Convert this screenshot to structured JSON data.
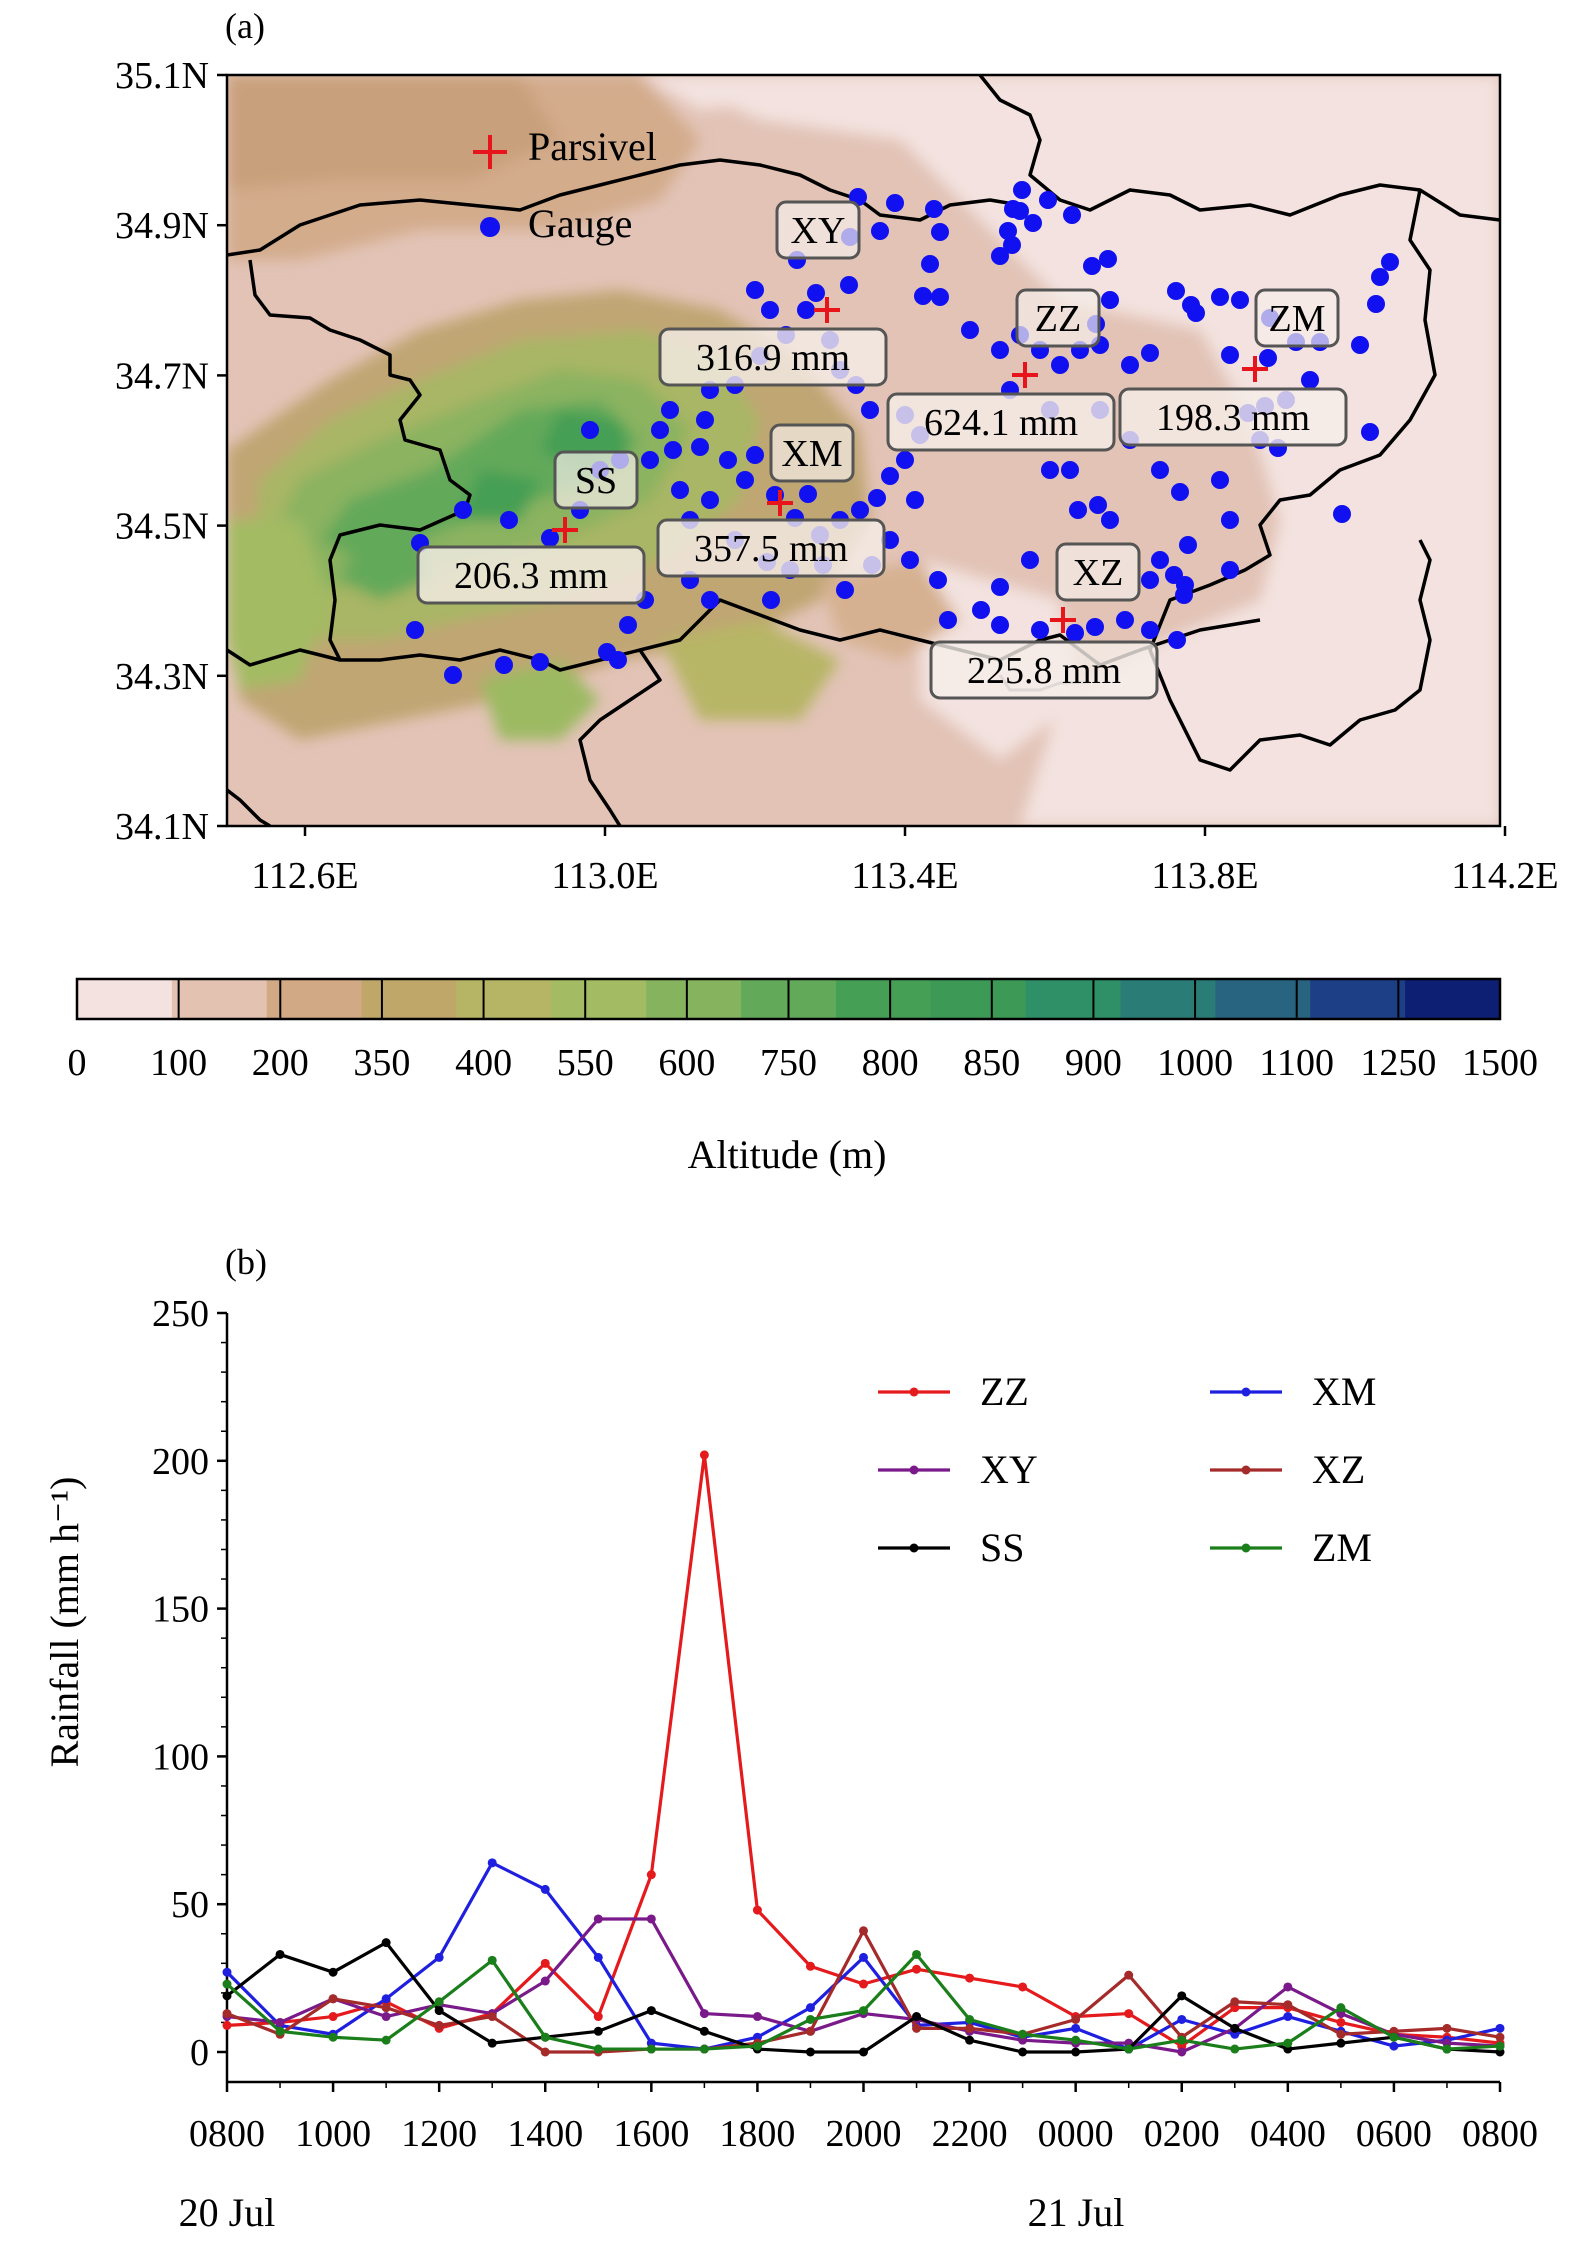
{
  "panel_a": {
    "label": "(a)",
    "lon_ticks": [
      "112.6E",
      "113.0E",
      "113.4E",
      "113.8E",
      "114.2E"
    ],
    "lat_ticks": [
      "35.1N",
      "34.9N",
      "34.7N",
      "34.5N",
      "34.3N",
      "34.1N"
    ],
    "legend": {
      "parsivel": "Parsivel",
      "gauge": "Gauge"
    },
    "colorbar": {
      "label": "Altitude (m)",
      "levels": [
        "0",
        "100",
        "200",
        "350",
        "400",
        "550",
        "600",
        "750",
        "800",
        "850",
        "900",
        "1000",
        "1100",
        "1250",
        "1500"
      ],
      "colors": [
        "#f3e2df",
        "#e4c2b1",
        "#d2a985",
        "#bfa76a",
        "#b6b566",
        "#a3bb63",
        "#86b35e",
        "#63a95a",
        "#459f55",
        "#3c9a56",
        "#2f8f66",
        "#2a7c76",
        "#28637f",
        "#1c3f85",
        "#0c1f73"
      ]
    },
    "stations": [
      {
        "name": "XY",
        "rain": "316.9 mm"
      },
      {
        "name": "ZZ",
        "rain": "624.1 mm"
      },
      {
        "name": "ZM",
        "rain": "198.3 mm"
      },
      {
        "name": "XM",
        "rain": "357.5 mm"
      },
      {
        "name": "SS",
        "rain": "206.3 mm"
      },
      {
        "name": "XZ",
        "rain": "225.8 mm"
      }
    ]
  },
  "panel_b": {
    "label": "(b)",
    "date_labels": [
      "20 Jul",
      "21 Jul"
    ]
  },
  "chart_data": {
    "type": "line",
    "ylabel": "Rainfall (mm h⁻¹)",
    "ylim": [
      0,
      250
    ],
    "y_ticks": [
      0,
      50,
      100,
      150,
      200,
      250
    ],
    "x": [
      "0800",
      "0900",
      "1000",
      "1100",
      "1200",
      "1300",
      "1400",
      "1500",
      "1600",
      "1700",
      "1800",
      "1900",
      "2000",
      "2100",
      "2200",
      "2300",
      "0000",
      "0100",
      "0200",
      "0300",
      "0400",
      "0500",
      "0600",
      "0700",
      "0800"
    ],
    "x_tick_labels": [
      "0800",
      "1000",
      "1200",
      "1400",
      "1600",
      "1800",
      "2000",
      "2200",
      "0000",
      "0200",
      "0400",
      "0600",
      "0800"
    ],
    "legend_position": "top-right",
    "series": [
      {
        "name": "ZZ",
        "color": "#e41a1c",
        "values": [
          9,
          10,
          12,
          17,
          8,
          13,
          30,
          12,
          60,
          202,
          48,
          29,
          23,
          28,
          25,
          22,
          12,
          13,
          2,
          15,
          15,
          10,
          6,
          5,
          3
        ]
      },
      {
        "name": "XM",
        "color": "#1f1fe0",
        "values": [
          27,
          9,
          6,
          18,
          32,
          64,
          55,
          32,
          3,
          1,
          5,
          15,
          32,
          9,
          10,
          5,
          8,
          1,
          11,
          6,
          12,
          7,
          2,
          4,
          8
        ]
      },
      {
        "name": "XY",
        "color": "#7a1a8a",
        "values": [
          12,
          10,
          18,
          12,
          16,
          13,
          24,
          45,
          45,
          13,
          12,
          7,
          13,
          11,
          7,
          4,
          3,
          3,
          0,
          8,
          22,
          13,
          6,
          3,
          2
        ]
      },
      {
        "name": "XZ",
        "color": "#a52a2a",
        "values": [
          13,
          6,
          18,
          15,
          9,
          12,
          0,
          0,
          1,
          1,
          3,
          7,
          41,
          8,
          8,
          6,
          11,
          26,
          5,
          17,
          16,
          6,
          7,
          8,
          5
        ]
      },
      {
        "name": "SS",
        "color": "#000000",
        "values": [
          19,
          33,
          27,
          37,
          14,
          3,
          5,
          7,
          14,
          7,
          1,
          0,
          0,
          12,
          4,
          0,
          0,
          1,
          19,
          8,
          1,
          3,
          5,
          1,
          0
        ]
      },
      {
        "name": "ZM",
        "color": "#1a7f1a",
        "values": [
          23,
          7,
          5,
          4,
          17,
          31,
          5,
          1,
          1,
          1,
          2,
          11,
          14,
          33,
          11,
          6,
          4,
          1,
          4,
          1,
          3,
          15,
          5,
          1,
          2
        ]
      }
    ]
  }
}
